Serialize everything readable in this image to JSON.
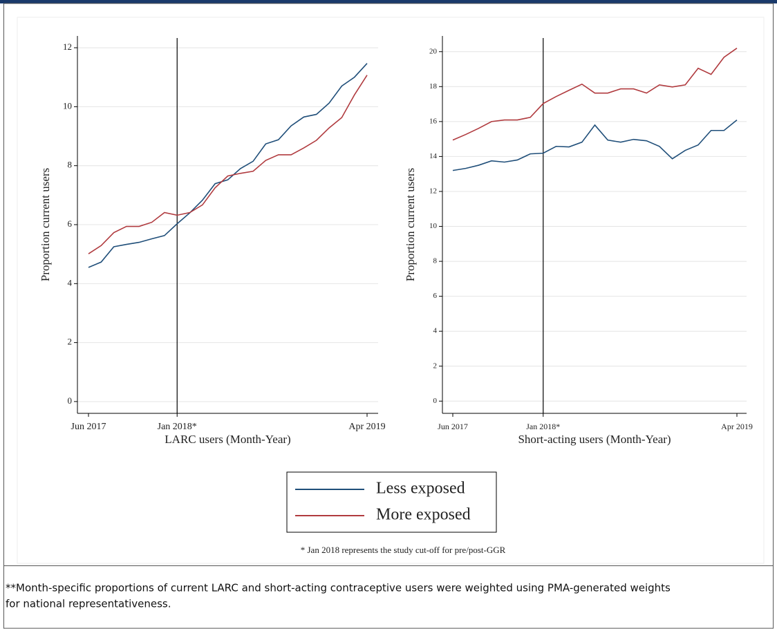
{
  "chart_data": [
    {
      "type": "line",
      "x_title": "LARC users (Month-Year)",
      "y_title": "Proportion current users",
      "categories": [
        "Jun 2017",
        null,
        null,
        null,
        null,
        null,
        null,
        "Jan 2018*",
        null,
        null,
        null,
        null,
        null,
        null,
        null,
        null,
        null,
        null,
        null,
        null,
        null,
        null,
        "Apr 2019"
      ],
      "series": [
        {
          "name": "Less exposed",
          "color": "#1f4e79",
          "values": [
            4.55,
            4.73,
            5.25,
            5.33,
            5.4,
            5.52,
            5.63,
            6.03,
            6.4,
            6.83,
            7.39,
            7.52,
            7.9,
            8.15,
            8.74,
            8.88,
            9.35,
            9.65,
            9.74,
            10.12,
            10.7,
            11.0,
            11.47
          ]
        },
        {
          "name": "More exposed",
          "color": "#b03a3e",
          "values": [
            5.01,
            5.29,
            5.73,
            5.94,
            5.94,
            6.08,
            6.41,
            6.32,
            6.41,
            6.67,
            7.25,
            7.65,
            7.74,
            7.81,
            8.18,
            8.37,
            8.37,
            8.6,
            8.86,
            9.28,
            9.63,
            10.4,
            11.07
          ]
        }
      ],
      "ylim": [
        -0.4,
        12.4
      ],
      "yticks": [
        0,
        2,
        4,
        6,
        8,
        10,
        12
      ],
      "grid": true,
      "vline_category": 7
    },
    {
      "type": "line",
      "x_title": "Short-acting users (Month-Year)",
      "y_title": "Proportion current users",
      "categories": [
        "Jun 2017",
        null,
        null,
        null,
        null,
        null,
        null,
        "Jan 2018*",
        null,
        null,
        null,
        null,
        null,
        null,
        null,
        null,
        null,
        null,
        null,
        null,
        null,
        null,
        "Apr 2019"
      ],
      "series": [
        {
          "color": "#1f4e79",
          "values": [
            13.2,
            13.32,
            13.5,
            13.75,
            13.68,
            13.8,
            14.15,
            14.19,
            14.58,
            14.55,
            14.82,
            15.8,
            14.94,
            14.82,
            14.98,
            14.9,
            14.58,
            13.87,
            14.35,
            14.66,
            15.49,
            15.49,
            16.09
          ]
        },
        {
          "color": "#b03a3e",
          "values": [
            14.94,
            15.26,
            15.61,
            16.0,
            16.09,
            16.09,
            16.24,
            17.03,
            17.43,
            17.79,
            18.14,
            17.63,
            17.63,
            17.87,
            17.87,
            17.63,
            18.1,
            17.98,
            18.1,
            19.05,
            18.7,
            19.68,
            20.2
          ]
        }
      ],
      "ylim": [
        -0.7,
        20.9
      ],
      "yticks": [
        0,
        2,
        4,
        6,
        8,
        10,
        12,
        14,
        16,
        18,
        20
      ],
      "grid": true,
      "vline_category": 7
    }
  ],
  "footnote": "* Jan 2018 represents the study cut-off for pre/post-GGR",
  "caption": [
    "**Month-specific proportions of current LARC and short-acting contraceptive users were weighted using PMA-generated weights",
    "for national representativeness."
  ]
}
